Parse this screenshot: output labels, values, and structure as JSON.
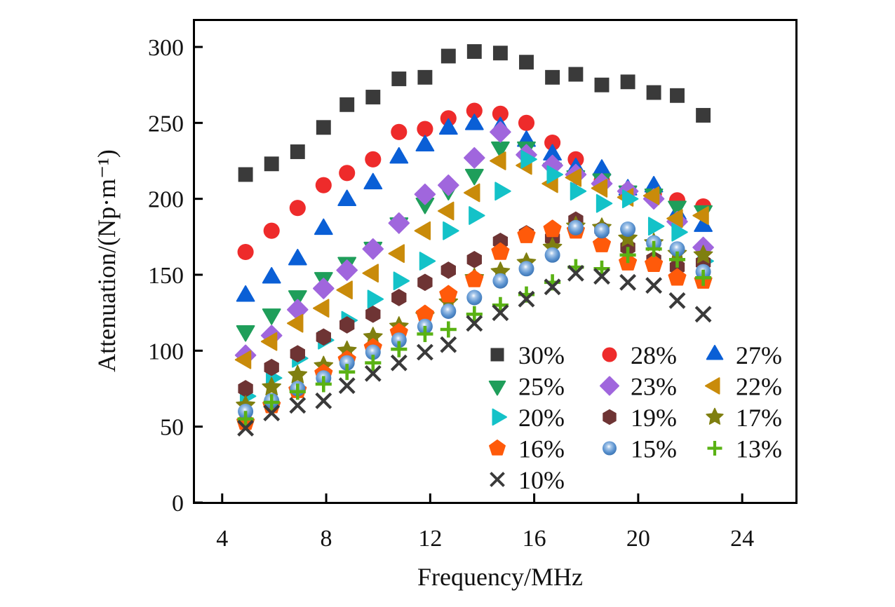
{
  "chart_data": {
    "type": "scatter",
    "title": "",
    "xlabel": "Frequency/MHz",
    "ylabel": "Attenuation/(Np·m⁻¹)",
    "xlim": [
      2.9,
      26.1
    ],
    "ylim": [
      0,
      318
    ],
    "xticks": [
      4,
      8,
      12,
      16,
      20,
      24
    ],
    "yticks": [
      0,
      50,
      100,
      150,
      200,
      250,
      300
    ],
    "grid": false,
    "legend_position": "bottom-right",
    "legend_columns": 3,
    "x": [
      4.9,
      5.9,
      6.9,
      7.9,
      8.8,
      9.8,
      10.8,
      11.8,
      12.7,
      13.7,
      14.7,
      15.7,
      16.7,
      17.6,
      18.6,
      19.6,
      20.6,
      21.5,
      22.5
    ],
    "series": [
      {
        "name": "30%",
        "marker": "square",
        "color": "#3a3a3a",
        "values": [
          216,
          223,
          231,
          247,
          262,
          267,
          279,
          280,
          294,
          297,
          296,
          290,
          280,
          282,
          275,
          277,
          270,
          268,
          255
        ]
      },
      {
        "name": "28%",
        "marker": "circle",
        "color": "#ee2b2b",
        "values": [
          165,
          179,
          194,
          209,
          217,
          226,
          244,
          246,
          253,
          258,
          256,
          250,
          237,
          226,
          212,
          205,
          203,
          199,
          195
        ]
      },
      {
        "name": "27%",
        "marker": "triangle-up",
        "color": "#0a5fd6",
        "values": [
          136,
          148,
          160,
          180,
          199,
          210,
          227,
          235,
          246,
          249,
          247,
          238,
          229,
          220,
          219,
          206,
          208,
          190,
          182
        ]
      },
      {
        "name": "25%",
        "marker": "triangle-down",
        "color": "#1f9e5a",
        "values": [
          113,
          124,
          136,
          148,
          158,
          168,
          184,
          197,
          206,
          216,
          234,
          234,
          220,
          215,
          213,
          205,
          203,
          195,
          192
        ]
      },
      {
        "name": "23%",
        "marker": "diamond",
        "color": "#a066dd",
        "values": [
          97,
          110,
          127,
          141,
          153,
          167,
          184,
          203,
          209,
          227,
          244,
          229,
          222,
          216,
          210,
          205,
          200,
          185,
          168
        ]
      },
      {
        "name": "22%",
        "marker": "triangle-left",
        "color": "#c98b0a",
        "values": [
          94,
          106,
          118,
          128,
          140,
          151,
          164,
          179,
          192,
          204,
          225,
          222,
          210,
          214,
          207,
          201,
          202,
          187,
          189
        ]
      },
      {
        "name": "20%",
        "marker": "triangle-right",
        "color": "#14c2c8",
        "values": [
          70,
          82,
          95,
          107,
          120,
          134,
          146,
          159,
          179,
          189,
          205,
          226,
          216,
          205,
          197,
          200,
          182,
          178,
          159
        ]
      },
      {
        "name": "19%",
        "marker": "hexagon",
        "color": "#6e3434",
        "values": [
          75,
          89,
          98,
          109,
          117,
          124,
          135,
          145,
          153,
          160,
          172,
          177,
          174,
          186,
          180,
          168,
          160,
          155,
          158
        ]
      },
      {
        "name": "17%",
        "marker": "star",
        "color": "#7f7f10",
        "values": [
          64,
          76,
          84,
          90,
          100,
          109,
          116,
          123,
          132,
          148,
          152,
          158,
          168,
          182,
          181,
          174,
          171,
          164,
          163
        ]
      },
      {
        "name": "16%",
        "marker": "pentagon",
        "color": "#ff5a0a",
        "values": [
          53,
          64,
          74,
          85,
          94,
          102,
          112,
          124,
          137,
          147,
          165,
          176,
          180,
          179,
          170,
          158,
          157,
          148,
          146
        ]
      },
      {
        "name": "15%",
        "marker": "sphere",
        "color": "#5b93d0",
        "values": [
          60,
          67,
          75,
          82,
          92,
          99,
          107,
          116,
          126,
          135,
          146,
          154,
          163,
          181,
          179,
          180,
          171,
          167,
          152
        ]
      },
      {
        "name": "13%",
        "marker": "plus",
        "color": "#5ab214",
        "values": [
          55,
          66,
          73,
          78,
          86,
          92,
          101,
          111,
          114,
          124,
          130,
          137,
          145,
          155,
          154,
          163,
          167,
          160,
          148
        ]
      },
      {
        "name": "10%",
        "marker": "x",
        "color": "#3a3a3a",
        "values": [
          49,
          59,
          64,
          67,
          77,
          85,
          92,
          99,
          104,
          118,
          125,
          134,
          142,
          151,
          149,
          145,
          143,
          133,
          124
        ]
      }
    ]
  }
}
